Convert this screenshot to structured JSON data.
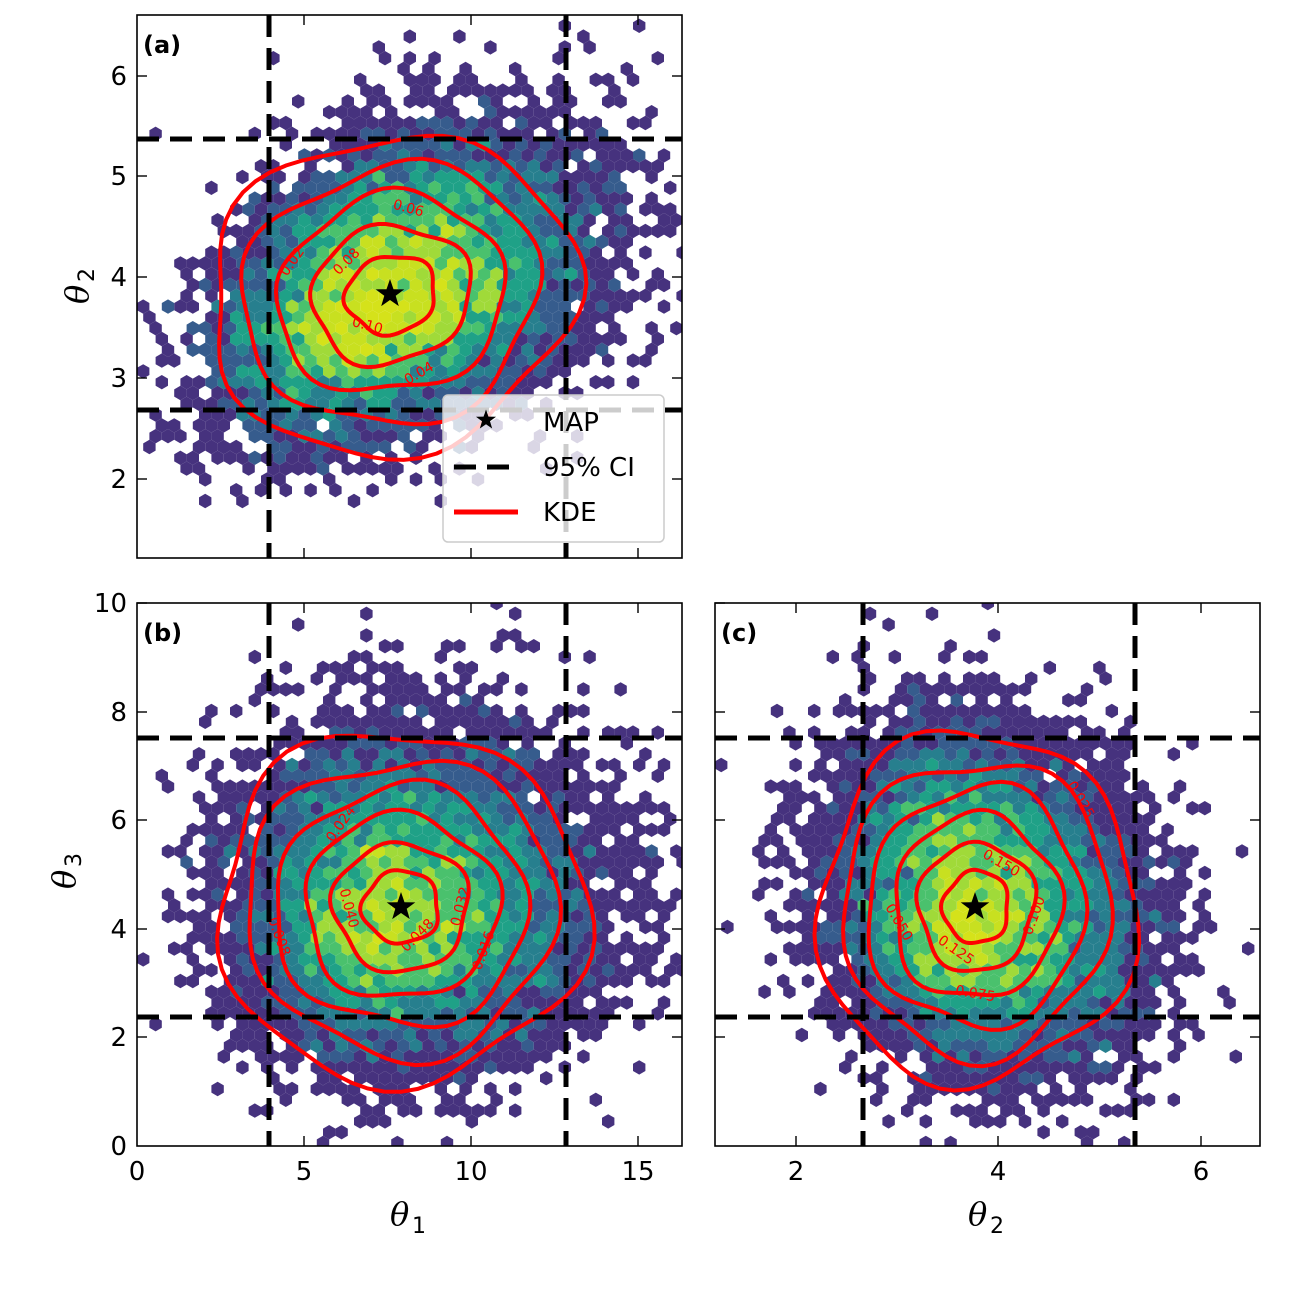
{
  "figure": {
    "panels": [
      {
        "id": "a",
        "label": "(a)",
        "xlabel": "θ",
        "xlabel_sub": "",
        "ylabel": "θ",
        "ylabel_sub": "2"
      },
      {
        "id": "b",
        "label": "(b)",
        "xlabel": "θ",
        "xlabel_sub": "1",
        "ylabel": "θ",
        "ylabel_sub": "3"
      },
      {
        "id": "c",
        "label": "(c)",
        "xlabel": "θ",
        "xlabel_sub": "2",
        "ylabel": "",
        "ylabel_sub": ""
      }
    ],
    "legend": {
      "items": [
        {
          "label": "MAP",
          "marker": "star",
          "color": "#000000"
        },
        {
          "label": "95% CI",
          "marker": "dashed-line",
          "color": "#000000"
        },
        {
          "label": "KDE",
          "marker": "solid-line",
          "color": "#ff0000"
        }
      ]
    },
    "colors": {
      "kde": "#ff0000",
      "ci": "#000000",
      "colormap": "viridis"
    }
  },
  "chart_data": [
    {
      "type": "scatter",
      "subtype": "hexbin + kde contour",
      "panel": "(a)",
      "title": "",
      "xlabel": "θ1",
      "ylabel": "θ2",
      "xlim": [
        0,
        16.3
      ],
      "ylim": [
        1.22,
        6.6
      ],
      "xticks": [
        5,
        10,
        15
      ],
      "xtick_labels_shown": false,
      "yticks": [
        2,
        3,
        4,
        5,
        6
      ],
      "map_point": [
        7.6,
        3.83
      ],
      "ci95": {
        "x": [
          3.95,
          12.85
        ],
        "y": [
          2.68,
          5.36
        ]
      },
      "kde_contour_levels": [
        0.02,
        0.04,
        0.06,
        0.08,
        0.1
      ],
      "contour_labels": [
        "0.02",
        "0.04",
        "0.06",
        "0.08",
        "0.10"
      ],
      "legend_position": "lower right",
      "legend": [
        "MAP",
        "95% CI",
        "KDE"
      ]
    },
    {
      "type": "scatter",
      "subtype": "hexbin + kde contour",
      "panel": "(b)",
      "xlabel": "θ1",
      "ylabel": "θ3",
      "xlim": [
        0,
        16.3
      ],
      "ylim": [
        0,
        10
      ],
      "xticks": [
        0,
        5,
        10,
        15
      ],
      "yticks": [
        0,
        2,
        4,
        6,
        8,
        10
      ],
      "map_point": [
        7.9,
        4.4
      ],
      "ci95": {
        "x": [
          3.95,
          12.85
        ],
        "y": [
          2.38,
          7.58
        ]
      },
      "kde_contour_levels": [
        0.008,
        0.016,
        0.024,
        0.032,
        0.04,
        0.048
      ],
      "contour_labels": [
        "0.008",
        "0.016",
        "0.024",
        "0.032",
        "0.040",
        "0.048"
      ]
    },
    {
      "type": "scatter",
      "subtype": "hexbin + kde contour",
      "panel": "(c)",
      "xlabel": "θ2",
      "ylabel": "θ3",
      "xlim": [
        1.21,
        6.57
      ],
      "ylim": [
        0,
        10
      ],
      "xticks": [
        2,
        4,
        6
      ],
      "yticks": [
        0,
        2,
        4,
        6,
        8,
        10
      ],
      "ytick_labels_shown": false,
      "map_point": [
        3.78,
        4.4
      ],
      "ci95": {
        "x": [
          2.68,
          5.36
        ],
        "y": [
          2.38,
          7.58
        ]
      },
      "kde_contour_levels": [
        0.025,
        0.05,
        0.075,
        0.1,
        0.125,
        0.15
      ],
      "contour_labels": [
        "0.025",
        "0.050",
        "0.075",
        "0.100",
        "0.125",
        "0.150"
      ]
    }
  ]
}
